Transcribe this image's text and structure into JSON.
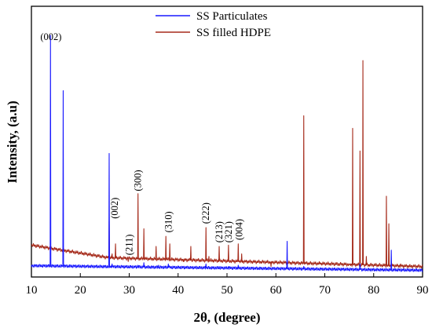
{
  "chart_data": {
    "type": "line",
    "xlabel": "2θ, (degree)",
    "ylabel": "Intensity, (a.u)",
    "xlim": [
      10,
      90
    ],
    "xticks": [
      10,
      20,
      30,
      40,
      50,
      60,
      70,
      80,
      90
    ],
    "ylim": [
      0,
      100
    ],
    "grid": false,
    "legend_position": "top-center",
    "series": [
      {
        "name": "SS Particulates",
        "color": "#1a1aff",
        "baseline": [
          [
            10,
            2.3
          ],
          [
            90,
            0.5
          ]
        ],
        "peaks": [
          [
            13.9,
            94.0
          ],
          [
            16.5,
            72.0
          ],
          [
            25.9,
            47.0
          ],
          [
            26.5,
            3.0
          ],
          [
            31.8,
            2.5
          ],
          [
            33.0,
            3.5
          ],
          [
            36.0,
            2.5
          ],
          [
            38.0,
            3.0
          ],
          [
            42.6,
            2.0
          ],
          [
            45.7,
            3.0
          ],
          [
            48.4,
            2.0
          ],
          [
            50.3,
            2.0
          ],
          [
            52.3,
            2.5
          ],
          [
            62.3,
            12.0
          ],
          [
            65.7,
            2.0
          ],
          [
            77.2,
            3.0
          ],
          [
            83.6,
            8.5
          ]
        ]
      },
      {
        "name": "SS filled HDPE",
        "color": "#a52a1a",
        "baseline": [
          [
            10,
            10.5
          ],
          [
            25.8,
            5.5
          ],
          [
            90,
            2.0
          ]
        ],
        "peaks": [
          [
            25.9,
            20.0
          ],
          [
            26.5,
            7.0
          ],
          [
            27.2,
            11.0
          ],
          [
            29.8,
            4.0
          ],
          [
            31.8,
            31.0
          ],
          [
            33.0,
            17.0
          ],
          [
            35.5,
            10.0
          ],
          [
            37.5,
            14.0
          ],
          [
            38.3,
            11.0
          ],
          [
            41.2,
            4.0
          ],
          [
            42.6,
            10.0
          ],
          [
            45.7,
            17.5
          ],
          [
            46.3,
            6.0
          ],
          [
            48.4,
            10.0
          ],
          [
            50.3,
            10.5
          ],
          [
            52.3,
            11.0
          ],
          [
            53.0,
            7.0
          ],
          [
            59.0,
            2.0
          ],
          [
            62.2,
            2.5
          ],
          [
            65.7,
            62.0
          ],
          [
            69.0,
            3.5
          ],
          [
            75.0,
            3.0
          ],
          [
            75.7,
            57.0
          ],
          [
            77.2,
            48.0
          ],
          [
            77.8,
            84.0
          ],
          [
            78.5,
            6.0
          ],
          [
            82.6,
            30.0
          ],
          [
            83.1,
            19.0
          ],
          [
            85.5,
            3.0
          ],
          [
            87.5,
            2.0
          ]
        ]
      }
    ],
    "annotations": [
      {
        "text": "(002)",
        "x": 14.0,
        "y": 96.0
      },
      {
        "text": "(002)",
        "x": 27.0,
        "y": 21.0
      },
      {
        "text": "(211)",
        "x": 30.0,
        "y": 6.5
      },
      {
        "text": "(300)",
        "x": 31.8,
        "y": 32.0
      },
      {
        "text": "(310)",
        "x": 38.0,
        "y": 15.5
      },
      {
        "text": "(222)",
        "x": 45.7,
        "y": 19.0
      },
      {
        "text": "(213)",
        "x": 48.4,
        "y": 11.5
      },
      {
        "text": "(321)",
        "x": 50.3,
        "y": 11.5
      },
      {
        "text": "(004)",
        "x": 52.5,
        "y": 12.5
      }
    ]
  }
}
